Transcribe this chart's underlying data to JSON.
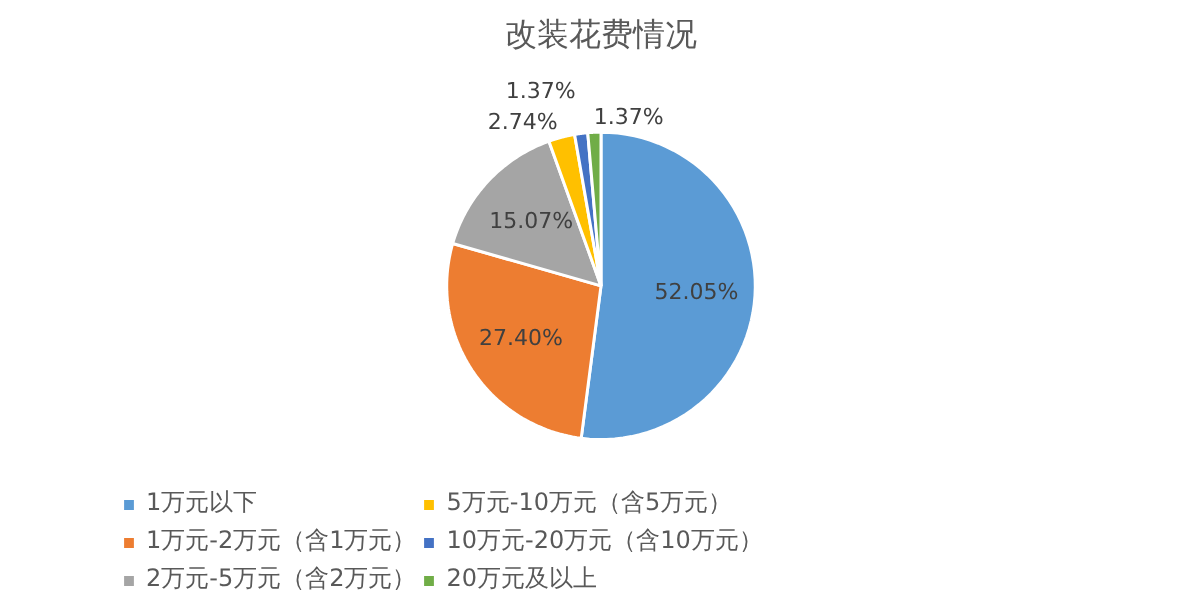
{
  "chart_data": {
    "type": "pie",
    "title": "改装花费情况",
    "categories": [
      "1万元以下",
      "1万元-2万元（含1万元）",
      "2万元-5万元（含2万元）",
      "5万元-10万元（含5万元）",
      "10万元-20万元（含10万元）",
      "20万元及以上"
    ],
    "values": [
      52.05,
      27.4,
      15.07,
      2.74,
      1.37,
      1.37
    ],
    "colors": [
      "#5b9bd5",
      "#ed7d31",
      "#a5a5a5",
      "#ffc000",
      "#4472c4",
      "#70ad47"
    ],
    "value_labels": [
      "52.05%",
      "27.40%",
      "15.07%",
      "2.74%",
      "1.37%",
      "1.37%"
    ],
    "legend": "bottom"
  }
}
